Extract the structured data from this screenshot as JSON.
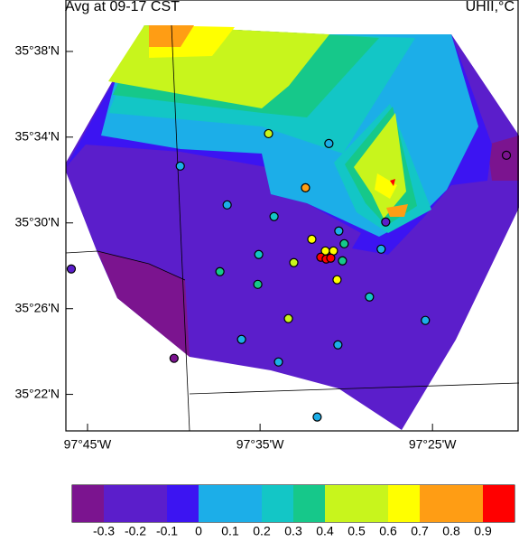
{
  "chart_data": {
    "type": "scatter",
    "title": "Avg at 09-17 CST",
    "subtitle": "UHII,°C",
    "xlim": [
      -97.7709,
      -97.334
    ],
    "ylim": [
      35.3383,
      35.6733
    ],
    "xticks": [
      {
        "value": -97.75,
        "label": "97°45'W"
      },
      {
        "value": -97.5833,
        "label": "97°35'W"
      },
      {
        "value": -97.4167,
        "label": "97°25'W"
      }
    ],
    "yticks": [
      {
        "value": 35.6333,
        "label": "35°38'N"
      },
      {
        "value": 35.5667,
        "label": "35°34'N"
      },
      {
        "value": 35.5,
        "label": "35°30'N"
      },
      {
        "value": 35.4333,
        "label": "35°26'N"
      },
      {
        "value": 35.3667,
        "label": "35°22'N"
      }
    ],
    "x": [
      -97.5751,
      -97.5168,
      -97.6604,
      -97.5394,
      -97.3453,
      -97.6151,
      -97.5698,
      -97.4619,
      -97.5072,
      -97.5333,
      -97.502,
      -97.5846,
      -97.5202,
      -97.5124,
      -97.4663,
      -97.5507,
      -97.5037,
      -97.7657,
      -97.6221,
      -97.5089,
      -97.5855,
      -97.4776,
      -97.5559,
      -97.4236,
      -97.6012,
      -97.5081,
      -97.6664,
      -97.5655,
      -97.5281,
      -97.5246,
      -97.5194,
      -97.515
    ],
    "y": [
      35.5694,
      35.5617,
      35.5442,
      35.5273,
      35.5526,
      35.514,
      35.5049,
      35.5007,
      35.4937,
      35.4873,
      35.4838,
      35.4754,
      35.4782,
      35.4782,
      35.4796,
      35.4691,
      35.4705,
      35.4642,
      35.4621,
      35.4558,
      35.4522,
      35.4424,
      35.4256,
      35.4242,
      35.4094,
      35.4052,
      35.3947,
      35.3919,
      35.3491,
      35.4733,
      35.4719,
      35.4726
    ],
    "values": [
      0.45,
      0.15,
      0.15,
      0.75,
      -0.35,
      0.15,
      0.25,
      -0.15,
      0.15,
      0.65,
      0.35,
      0.25,
      0.65,
      0.65,
      0.15,
      0.55,
      0.35,
      -0.15,
      0.35,
      0.65,
      0.35,
      0.25,
      0.55,
      0.15,
      0.15,
      0.15,
      -0.35,
      0.15,
      0.15,
      0.95,
      0.95,
      0.95
    ],
    "colorbar": {
      "ticks": [
        -0.3,
        -0.2,
        -0.1,
        0,
        0.1,
        0.2,
        0.3,
        0.4,
        0.5,
        0.6,
        0.7,
        0.8,
        0.9
      ],
      "colors": [
        "#7b148f",
        "#5b1ecb",
        "#5b1ecb",
        "#3c14f2",
        "#1caee8",
        "#1caee8",
        "#13c6c6",
        "#16c88a",
        "#c8f51c",
        "#c8f51c",
        "#ffff00",
        "#ff9d14",
        "#ff9d14",
        "#ff0000"
      ]
    }
  }
}
